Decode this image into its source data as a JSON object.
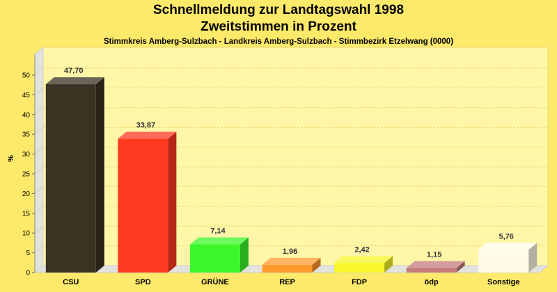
{
  "chart_data": {
    "type": "bar",
    "title": "Schnellmeldung zur Landtagswahl 1998",
    "subtitle": "Zweitstimmen in Prozent",
    "caption": "Stimmkreis Amberg-Sulzbach - Landkreis Amberg-Sulzbach - Stimmbezirk Etzelwang (0000)",
    "ylabel": "%",
    "ylim": [
      0,
      50
    ],
    "yticks": [
      0,
      5,
      10,
      15,
      20,
      25,
      30,
      35,
      40,
      45,
      50
    ],
    "grid": true,
    "categories": [
      "CSU",
      "SPD",
      "GRÜNE",
      "REP",
      "FDP",
      "ödp",
      "Sonstige"
    ],
    "values": [
      47.7,
      33.87,
      7.14,
      1.96,
      2.42,
      1.15,
      5.76
    ],
    "value_labels": [
      "47,70",
      "33,87",
      "7,14",
      "1,96",
      "2,42",
      "1,15",
      "5,76"
    ],
    "colors": [
      "#3A3222",
      "#FF3A20",
      "#3CF72A",
      "#FF9A2E",
      "#F7F72A",
      "#C47C7C",
      "#FFFBE8"
    ]
  }
}
